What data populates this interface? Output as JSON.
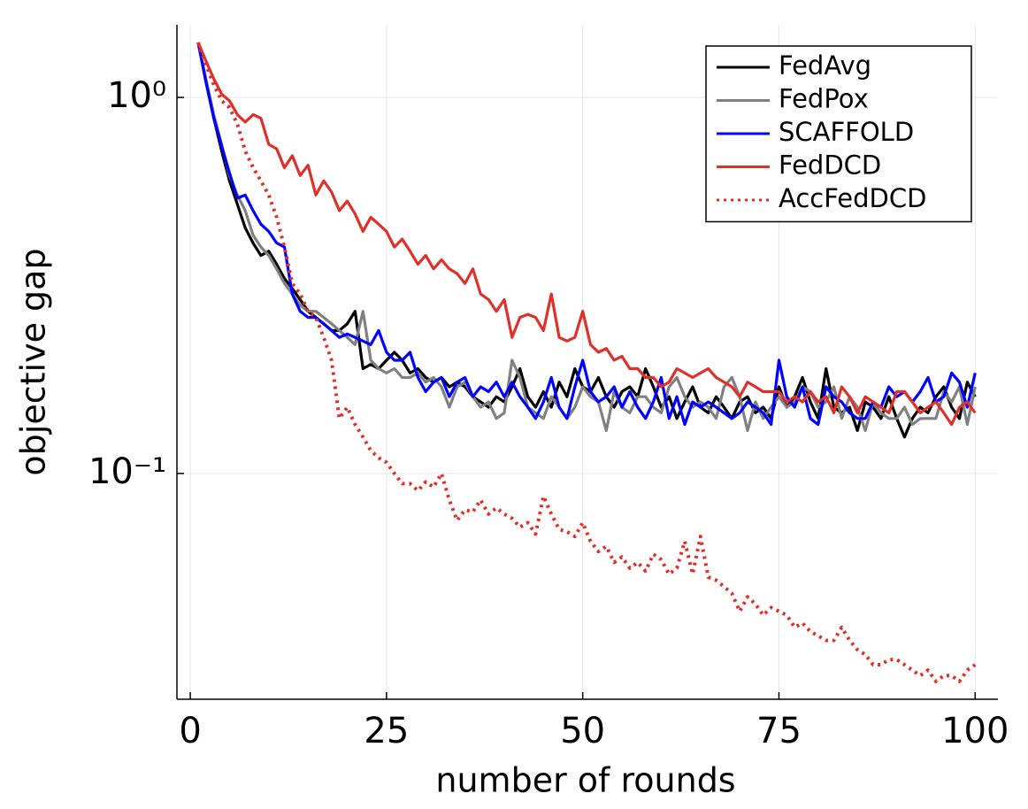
{
  "chart_data": {
    "type": "line",
    "xlabel": "number of rounds",
    "ylabel": "objective gap",
    "log_y": true,
    "grid": true,
    "legend_position": "top-right",
    "xlim": [
      -1.7,
      102.9
    ],
    "ylim": [
      0.0251,
      1.56
    ],
    "xticks": [
      0,
      25,
      50,
      75,
      100
    ],
    "yticks": [
      {
        "value": 0.1,
        "label": "10⁻¹"
      },
      {
        "value": 1,
        "label": "10⁰"
      }
    ],
    "x": [
      1,
      2,
      3,
      4,
      5,
      6,
      7,
      8,
      9,
      10,
      11,
      12,
      13,
      14,
      15,
      16,
      17,
      18,
      19,
      20,
      21,
      22,
      23,
      24,
      25,
      26,
      27,
      28,
      29,
      30,
      31,
      32,
      33,
      34,
      35,
      36,
      37,
      38,
      39,
      40,
      41,
      42,
      43,
      44,
      45,
      46,
      47,
      48,
      49,
      50,
      51,
      52,
      53,
      54,
      55,
      56,
      57,
      58,
      59,
      60,
      61,
      62,
      63,
      64,
      65,
      66,
      67,
      68,
      69,
      70,
      71,
      72,
      73,
      74,
      75,
      76,
      77,
      78,
      79,
      80,
      81,
      82,
      83,
      84,
      85,
      86,
      87,
      88,
      89,
      90,
      91,
      92,
      93,
      94,
      95,
      96,
      97,
      98,
      99,
      100
    ],
    "series": [
      {
        "name": "FedAvg",
        "color": "#000000",
        "linestyle": "solid",
        "values": [
          1.4,
          1.1,
          0.88,
          0.72,
          0.6,
          0.52,
          0.45,
          0.41,
          0.38,
          0.39,
          0.36,
          0.33,
          0.31,
          0.29,
          0.27,
          0.26,
          0.25,
          0.24,
          0.24,
          0.25,
          0.27,
          0.19,
          0.195,
          0.19,
          0.2,
          0.21,
          0.2,
          0.185,
          0.19,
          0.18,
          0.175,
          0.18,
          0.17,
          0.175,
          0.17,
          0.16,
          0.155,
          0.15,
          0.16,
          0.155,
          0.17,
          0.19,
          0.16,
          0.15,
          0.165,
          0.15,
          0.175,
          0.16,
          0.19,
          0.17,
          0.165,
          0.18,
          0.16,
          0.15,
          0.165,
          0.17,
          0.16,
          0.19,
          0.17,
          0.15,
          0.16,
          0.14,
          0.155,
          0.17,
          0.15,
          0.145,
          0.16,
          0.15,
          0.14,
          0.155,
          0.16,
          0.145,
          0.15,
          0.14,
          0.17,
          0.15,
          0.16,
          0.18,
          0.155,
          0.14,
          0.19,
          0.15,
          0.145,
          0.15,
          0.13,
          0.155,
          0.15,
          0.14,
          0.16,
          0.14,
          0.125,
          0.14,
          0.15,
          0.145,
          0.16,
          0.17,
          0.15,
          0.14,
          0.175,
          0.16
        ]
      },
      {
        "name": "FedPox",
        "color": "#808080",
        "linestyle": "solid",
        "values": [
          1.4,
          1.12,
          0.9,
          0.75,
          0.62,
          0.55,
          0.5,
          0.43,
          0.4,
          0.38,
          0.35,
          0.32,
          0.3,
          0.28,
          0.27,
          0.27,
          0.26,
          0.25,
          0.24,
          0.23,
          0.22,
          0.27,
          0.2,
          0.19,
          0.185,
          0.19,
          0.18,
          0.18,
          0.185,
          0.175,
          0.18,
          0.17,
          0.15,
          0.17,
          0.175,
          0.16,
          0.15,
          0.155,
          0.14,
          0.145,
          0.2,
          0.18,
          0.15,
          0.145,
          0.14,
          0.16,
          0.15,
          0.14,
          0.15,
          0.17,
          0.16,
          0.155,
          0.13,
          0.165,
          0.15,
          0.145,
          0.16,
          0.16,
          0.15,
          0.145,
          0.17,
          0.18,
          0.16,
          0.15,
          0.155,
          0.15,
          0.14,
          0.17,
          0.18,
          0.16,
          0.13,
          0.155,
          0.14,
          0.15,
          0.16,
          0.15,
          0.155,
          0.17,
          0.165,
          0.15,
          0.155,
          0.17,
          0.14,
          0.16,
          0.15,
          0.13,
          0.155,
          0.145,
          0.14,
          0.14,
          0.15,
          0.135,
          0.14,
          0.14,
          0.14,
          0.165,
          0.155,
          0.17,
          0.135,
          0.17
        ]
      },
      {
        "name": "SCAFFOLD",
        "color": "#0000ff",
        "linestyle": "solid",
        "values": [
          1.4,
          1.1,
          0.88,
          0.74,
          0.63,
          0.54,
          0.55,
          0.5,
          0.46,
          0.44,
          0.41,
          0.4,
          0.3,
          0.27,
          0.26,
          0.26,
          0.25,
          0.24,
          0.23,
          0.235,
          0.23,
          0.225,
          0.22,
          0.24,
          0.21,
          0.2,
          0.2,
          0.21,
          0.18,
          0.165,
          0.175,
          0.18,
          0.16,
          0.175,
          0.18,
          0.16,
          0.17,
          0.165,
          0.175,
          0.16,
          0.175,
          0.16,
          0.15,
          0.14,
          0.155,
          0.18,
          0.15,
          0.14,
          0.17,
          0.2,
          0.165,
          0.155,
          0.16,
          0.17,
          0.15,
          0.165,
          0.15,
          0.14,
          0.155,
          0.18,
          0.14,
          0.16,
          0.135,
          0.155,
          0.15,
          0.155,
          0.15,
          0.145,
          0.14,
          0.145,
          0.155,
          0.15,
          0.145,
          0.135,
          0.2,
          0.16,
          0.15,
          0.17,
          0.14,
          0.135,
          0.17,
          0.16,
          0.155,
          0.145,
          0.14,
          0.14,
          0.155,
          0.15,
          0.17,
          0.16,
          0.165,
          0.155,
          0.165,
          0.18,
          0.155,
          0.16,
          0.185,
          0.175,
          0.15,
          0.185
        ]
      },
      {
        "name": "FedDCD",
        "color": "#e0302a",
        "linestyle": "solid",
        "values": [
          1.4,
          1.25,
          1.12,
          1.02,
          0.98,
          0.9,
          0.86,
          0.9,
          0.88,
          0.75,
          0.73,
          0.65,
          0.7,
          0.62,
          0.66,
          0.55,
          0.6,
          0.56,
          0.5,
          0.53,
          0.49,
          0.44,
          0.48,
          0.46,
          0.44,
          0.4,
          0.42,
          0.39,
          0.36,
          0.38,
          0.35,
          0.37,
          0.35,
          0.34,
          0.32,
          0.35,
          0.3,
          0.29,
          0.27,
          0.29,
          0.23,
          0.26,
          0.265,
          0.26,
          0.24,
          0.3,
          0.23,
          0.225,
          0.23,
          0.27,
          0.22,
          0.21,
          0.215,
          0.2,
          0.205,
          0.19,
          0.19,
          0.18,
          0.18,
          0.17,
          0.175,
          0.19,
          0.185,
          0.18,
          0.185,
          0.19,
          0.18,
          0.175,
          0.17,
          0.16,
          0.175,
          0.17,
          0.165,
          0.165,
          0.165,
          0.155,
          0.16,
          0.155,
          0.165,
          0.155,
          0.16,
          0.145,
          0.17,
          0.16,
          0.145,
          0.16,
          0.155,
          0.15,
          0.145,
          0.165,
          0.165,
          0.155,
          0.145,
          0.15,
          0.155,
          0.145,
          0.135,
          0.15,
          0.155,
          0.145
        ]
      },
      {
        "name": "AccFedDCD",
        "color": "#e0302a",
        "linestyle": "dotted",
        "values": [
          1.4,
          1.22,
          1.08,
          0.98,
          0.94,
          0.85,
          0.72,
          0.65,
          0.6,
          0.55,
          0.48,
          0.4,
          0.32,
          0.3,
          0.27,
          0.26,
          0.23,
          0.2,
          0.14,
          0.15,
          0.135,
          0.125,
          0.115,
          0.11,
          0.107,
          0.1,
          0.094,
          0.094,
          0.09,
          0.095,
          0.092,
          0.1,
          0.085,
          0.075,
          0.08,
          0.079,
          0.085,
          0.078,
          0.081,
          0.078,
          0.076,
          0.072,
          0.074,
          0.069,
          0.087,
          0.078,
          0.071,
          0.07,
          0.068,
          0.074,
          0.066,
          0.062,
          0.064,
          0.058,
          0.06,
          0.056,
          0.058,
          0.055,
          0.061,
          0.059,
          0.054,
          0.056,
          0.066,
          0.054,
          0.068,
          0.053,
          0.052,
          0.05,
          0.048,
          0.043,
          0.047,
          0.045,
          0.042,
          0.044,
          0.043,
          0.042,
          0.039,
          0.04,
          0.038,
          0.037,
          0.036,
          0.036,
          0.039,
          0.036,
          0.034,
          0.033,
          0.031,
          0.031,
          0.032,
          0.032,
          0.031,
          0.03,
          0.029,
          0.03,
          0.028,
          0.029,
          0.029,
          0.028,
          0.03,
          0.031
        ]
      }
    ]
  }
}
